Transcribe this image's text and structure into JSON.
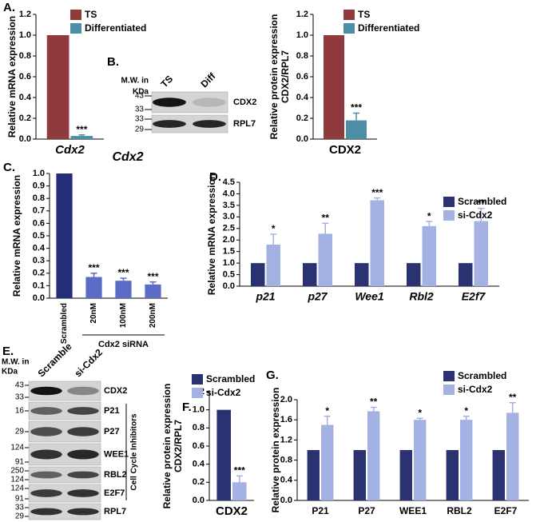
{
  "chart_data": [
    {
      "type": "bar",
      "panel": "A.",
      "ylabel": [
        "Relative mRNA expression"
      ],
      "categories": [
        "Cdx2"
      ],
      "italic_categories": true,
      "series": [
        {
          "name": "TS",
          "color": "#8f3a3c",
          "values": [
            1.0
          ]
        },
        {
          "name": "Differentiated",
          "color": "#4b8ea6",
          "values": [
            0.03
          ],
          "errors": [
            0.01
          ],
          "significance": [
            "***"
          ]
        }
      ],
      "ylim": [
        0,
        1.2
      ],
      "yticks": [
        {
          "value": 0,
          "label": "0.0"
        },
        0.2,
        0.4,
        0.6,
        0.8,
        {
          "value": 1,
          "label": "1.0"
        },
        1.2
      ]
    },
    {
      "type": "bar",
      "ylabel": [
        "Relative protein expression",
        "CDX2/RPL7"
      ],
      "categories": [
        "CDX2"
      ],
      "italic_categories": false,
      "series": [
        {
          "name": "TS",
          "color": "#8f3a3c",
          "values": [
            1.0
          ]
        },
        {
          "name": "Differentiated",
          "color": "#4b8ea6",
          "values": [
            0.18
          ],
          "errors": [
            0.07
          ],
          "significance": [
            "***"
          ]
        }
      ],
      "ylim": [
        0,
        1.2
      ],
      "yticks": [
        {
          "value": 0,
          "label": "0.0"
        },
        0.2,
        0.4,
        0.6,
        0.8,
        {
          "value": 1,
          "label": "1.0"
        },
        1.2
      ]
    },
    {
      "type": "bar",
      "panel": "C.",
      "title": "Cdx2",
      "ylabel": [
        "Relative mRNA expression"
      ],
      "categories": [
        "Scrambled",
        "20nM",
        "100nM",
        "200nM"
      ],
      "rotate_categories": true,
      "xlabel": "Cdx2 siRNA",
      "values": [
        1.0,
        0.17,
        0.14,
        0.11
      ],
      "errors": [
        null,
        0.03,
        0.02,
        0.02
      ],
      "significance": [
        null,
        "***",
        "***",
        "***"
      ],
      "colors": [
        "#262d78",
        "#5b6cc6",
        "#5b6cc6",
        "#5b6cc6"
      ],
      "ylim": [
        0,
        1.0
      ],
      "yticks": [
        {
          "value": 0,
          "label": "0.0"
        },
        0.1,
        0.2,
        0.3,
        0.4,
        0.5,
        0.6,
        0.7,
        0.8,
        0.9,
        {
          "value": 1,
          "label": "1.0"
        }
      ]
    },
    {
      "type": "bar",
      "panel": "D.",
      "ylabel": [
        "Relative mRNA expression"
      ],
      "categories": [
        "p21",
        "p27",
        "Wee1",
        "Rbl2",
        "E2f7"
      ],
      "italic_categories": true,
      "series": [
        {
          "name": "Scrambled",
          "color": "#2b3272",
          "values": [
            1,
            1,
            1,
            1,
            1
          ]
        },
        {
          "name": "si-Cdx2",
          "color": "#a3b1e3",
          "values": [
            1.8,
            2.27,
            3.72,
            2.6,
            2.82
          ],
          "errors": [
            0.45,
            0.45,
            0.1,
            0.2,
            0.55
          ],
          "significance": [
            "*",
            "**",
            "***",
            "*",
            "**"
          ]
        }
      ],
      "ylim": [
        0,
        4.5
      ],
      "yticks": [
        {
          "value": 0,
          "label": "0.0"
        },
        0.5,
        {
          "value": 1,
          "label": "1.0"
        },
        1.5,
        {
          "value": 2,
          "label": "2.0"
        },
        2.5,
        {
          "value": 3,
          "label": "3.0"
        },
        3.5,
        {
          "value": 4,
          "label": "4.0"
        },
        4.5
      ]
    },
    {
      "type": "bar",
      "panel": "F.",
      "ylabel": [
        "Relative protein expression",
        "CDX2/RPL7"
      ],
      "categories": [
        "CDX2"
      ],
      "italic_categories": false,
      "series": [
        {
          "name": "Scrambled",
          "color": "#2b3272",
          "values": [
            1.0
          ]
        },
        {
          "name": "si-Cdx2",
          "color": "#a3b1e3",
          "values": [
            0.2
          ],
          "errors": [
            0.07
          ],
          "significance": [
            "***"
          ]
        }
      ],
      "ylim": [
        0,
        1.2
      ],
      "yticks": [
        {
          "value": 0,
          "label": "0.0"
        },
        0.2,
        0.4,
        0.6,
        0.8,
        {
          "value": 1,
          "label": "1.0"
        },
        1.2
      ]
    },
    {
      "type": "bar",
      "panel": "G.",
      "ylabel": [
        "Relative protein expression"
      ],
      "categories": [
        "P21",
        "P27",
        "WEE1",
        "RBL2",
        "E2F7"
      ],
      "italic_categories": false,
      "series": [
        {
          "name": "Scrambled",
          "color": "#2b3272",
          "values": [
            1,
            1,
            1,
            1,
            1
          ]
        },
        {
          "name": "si-Cdx2",
          "color": "#a3b1e3",
          "values": [
            1.5,
            1.77,
            1.6,
            1.6,
            1.74
          ],
          "errors": [
            0.17,
            0.08,
            0.03,
            0.07,
            0.2
          ],
          "significance": [
            "*",
            "**",
            "*",
            "*",
            "**"
          ]
        }
      ],
      "ylim": [
        0,
        2.0
      ],
      "yticks": [
        {
          "value": 0,
          "label": "0.0"
        },
        0.4,
        0.8,
        1.2,
        1.6,
        {
          "value": 2,
          "label": "2.0"
        }
      ]
    }
  ],
  "blots": [
    {
      "panel": "B.",
      "mw_label": [
        "M.W. in",
        "KDa"
      ],
      "lanes": [
        "TS",
        "Diff"
      ],
      "rows": [
        {
          "name": "CDX2",
          "markers": [
            43,
            33
          ]
        },
        {
          "name": "RPL7",
          "markers": [
            33,
            29
          ]
        }
      ]
    },
    {
      "panel": "E.",
      "mw_label": [
        "M.W. in",
        "KDa"
      ],
      "lanes": [
        "Scramble",
        "si-Cdx2"
      ],
      "group_label": "Cell Cycle Inhibitors",
      "rows": [
        {
          "name": "CDX2",
          "markers": [
            43,
            33
          ]
        },
        {
          "name": "P21",
          "markers": [
            16
          ]
        },
        {
          "name": "P27",
          "markers": [
            29
          ]
        },
        {
          "name": "WEE1",
          "markers": [
            124,
            91
          ]
        },
        {
          "name": "RBL2",
          "markers": [
            250,
            124
          ]
        },
        {
          "name": "E2F7",
          "markers": [
            124,
            91
          ]
        },
        {
          "name": "RPL7",
          "markers": [
            33,
            29
          ]
        }
      ]
    }
  ]
}
